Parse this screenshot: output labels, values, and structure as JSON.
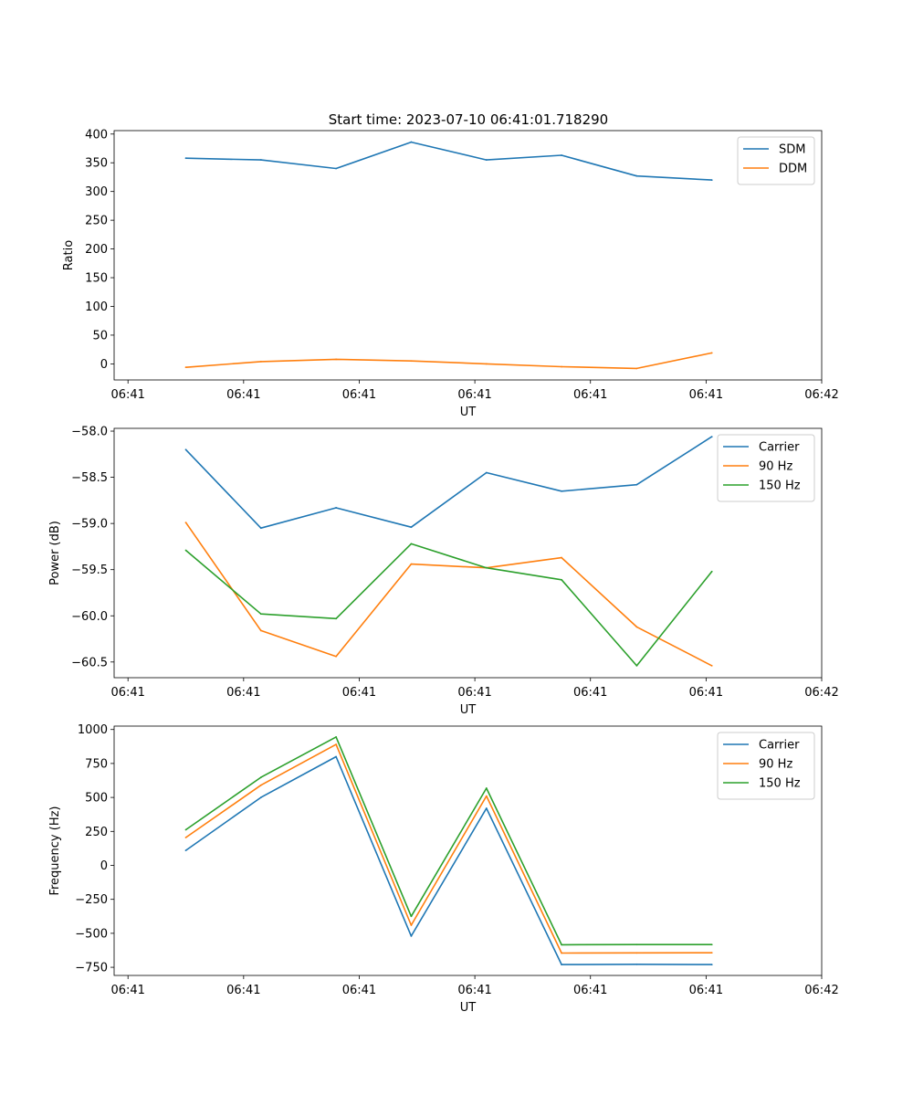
{
  "figure": {
    "title": "Start time: 2023-07-10 06:41:01.718290"
  },
  "colors": {
    "blue": "#1f77b4",
    "orange": "#ff7f0e",
    "green": "#2ca02c"
  },
  "chart_data": [
    {
      "type": "line",
      "title": "Start time: 2023-07-10 06:41:01.718290",
      "xlabel": "UT",
      "ylabel": "Ratio",
      "x_ticks": [
        "06:41",
        "06:41",
        "06:41",
        "06:41",
        "06:41",
        "06:41",
        "06:42"
      ],
      "x_tick_values": [
        0,
        1,
        2,
        3,
        4,
        5,
        6
      ],
      "xlim": [
        -0.12,
        6.0
      ],
      "x": [
        0.5,
        1.15,
        1.8,
        2.45,
        3.1,
        3.75,
        4.4,
        5.05
      ],
      "yticks": [
        0,
        50,
        100,
        150,
        200,
        250,
        300,
        350,
        400
      ],
      "ylim": [
        -28,
        406
      ],
      "legend_loc": "upper right",
      "series": [
        {
          "name": "SDM",
          "color": "#1f77b4",
          "values": [
            358,
            355,
            340,
            386,
            355,
            363,
            327,
            320
          ]
        },
        {
          "name": "DDM",
          "color": "#ff7f0e",
          "values": [
            -6,
            4,
            8,
            5,
            0,
            -5,
            -8,
            19
          ]
        }
      ]
    },
    {
      "type": "line",
      "xlabel": "UT",
      "ylabel": "Power (dB)",
      "x_ticks": [
        "06:41",
        "06:41",
        "06:41",
        "06:41",
        "06:41",
        "06:41",
        "06:42"
      ],
      "x_tick_values": [
        0,
        1,
        2,
        3,
        4,
        5,
        6
      ],
      "xlim": [
        -0.12,
        6.0
      ],
      "x": [
        0.5,
        1.15,
        1.8,
        2.45,
        3.1,
        3.75,
        4.4,
        5.05
      ],
      "yticks": [
        -60.5,
        -60.0,
        -59.5,
        -59.0,
        -58.5,
        -58.0
      ],
      "ytick_labels": [
        "−60.5",
        "−60.0",
        "−59.5",
        "−59.0",
        "−58.5",
        "−58.0"
      ],
      "ylim": [
        -60.67,
        -57.97
      ],
      "legend_loc": "upper right",
      "series": [
        {
          "name": "Carrier",
          "color": "#1f77b4",
          "values": [
            -58.2,
            -59.05,
            -58.83,
            -59.04,
            -58.45,
            -58.65,
            -58.58,
            -58.06
          ]
        },
        {
          "name": "90 Hz",
          "color": "#ff7f0e",
          "values": [
            -58.99,
            -60.16,
            -60.44,
            -59.44,
            -59.48,
            -59.37,
            -60.12,
            -60.54
          ]
        },
        {
          "name": "150 Hz",
          "color": "#2ca02c",
          "values": [
            -59.29,
            -59.98,
            -60.03,
            -59.22,
            -59.48,
            -59.61,
            -60.54,
            -59.52
          ]
        }
      ]
    },
    {
      "type": "line",
      "xlabel": "UT",
      "ylabel": "Frequency (Hz)",
      "x_ticks": [
        "06:41",
        "06:41",
        "06:41",
        "06:41",
        "06:41",
        "06:41",
        "06:42"
      ],
      "x_tick_values": [
        0,
        1,
        2,
        3,
        4,
        5,
        6
      ],
      "xlim": [
        -0.12,
        6.0
      ],
      "x": [
        0.5,
        1.15,
        1.8,
        2.45,
        3.1,
        3.75,
        4.4,
        5.05
      ],
      "yticks": [
        -750,
        -500,
        -250,
        0,
        250,
        500,
        750,
        1000
      ],
      "ytick_labels": [
        "−750",
        "−500",
        "−250",
        "0",
        "250",
        "500",
        "750",
        "1000"
      ],
      "ylim": [
        -810,
        1025
      ],
      "legend_loc": "upper right",
      "series": [
        {
          "name": "Carrier",
          "color": "#1f77b4",
          "values": [
            110,
            500,
            800,
            -520,
            420,
            -730,
            -728,
            -730
          ]
        },
        {
          "name": "90 Hz",
          "color": "#ff7f0e",
          "values": [
            205,
            590,
            890,
            -440,
            510,
            -645,
            -644,
            -643
          ]
        },
        {
          "name": "150 Hz",
          "color": "#2ca02c",
          "values": [
            262,
            648,
            945,
            -375,
            568,
            -584,
            -583,
            -583
          ]
        }
      ]
    }
  ]
}
